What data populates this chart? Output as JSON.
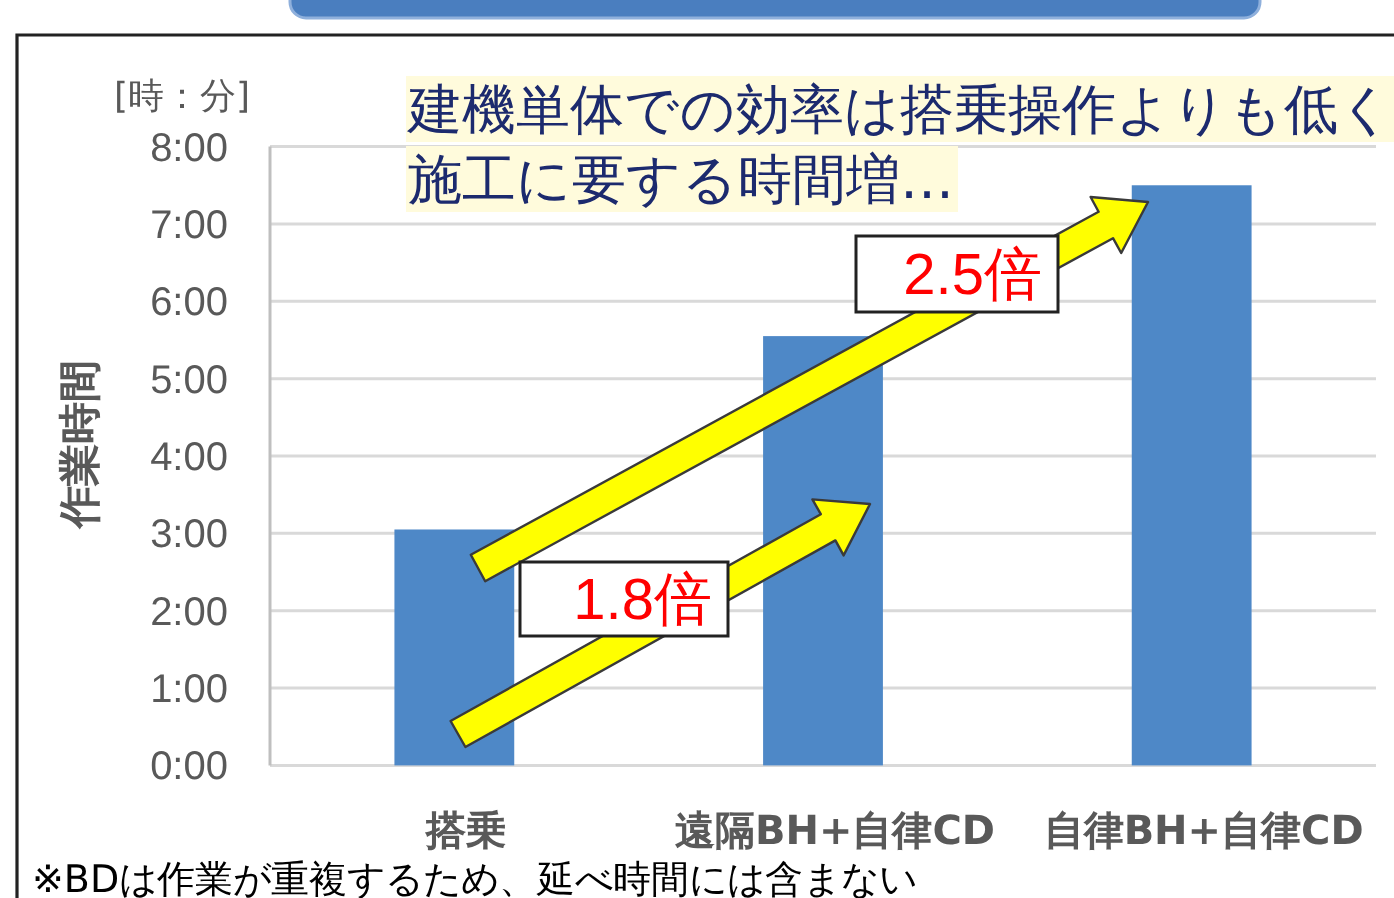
{
  "chart_data": {
    "type": "bar",
    "title": "建機単体での効率は搭乗操作よりも低く施工に要する時間増…",
    "ylabel": "作業時間",
    "categories": [
      "搭乗",
      "遠隔BH+自律CD",
      "自律BH+自律CD"
    ],
    "values": [
      3.05,
      5.55,
      7.5
    ],
    "color": "#4e88c7",
    "ylim": [
      0,
      8
    ],
    "yticks": [
      {
        "value": 0,
        "label": "0:00"
      },
      {
        "value": 1,
        "label": "1:00"
      },
      {
        "value": 2,
        "label": "2:00"
      },
      {
        "value": 3,
        "label": "3:00"
      },
      {
        "value": 4,
        "label": "4:00"
      },
      {
        "value": 5,
        "label": "5:00"
      },
      {
        "value": 6,
        "label": "6:00"
      },
      {
        "value": 7,
        "label": "7:00"
      },
      {
        "value": 8,
        "label": "8:00"
      }
    ],
    "grid": "y",
    "annotations": [
      "[時：分]",
      "1.8倍",
      "2.5倍",
      "※BDは作業が重複するため、延べ時間には含まない"
    ]
  }
}
